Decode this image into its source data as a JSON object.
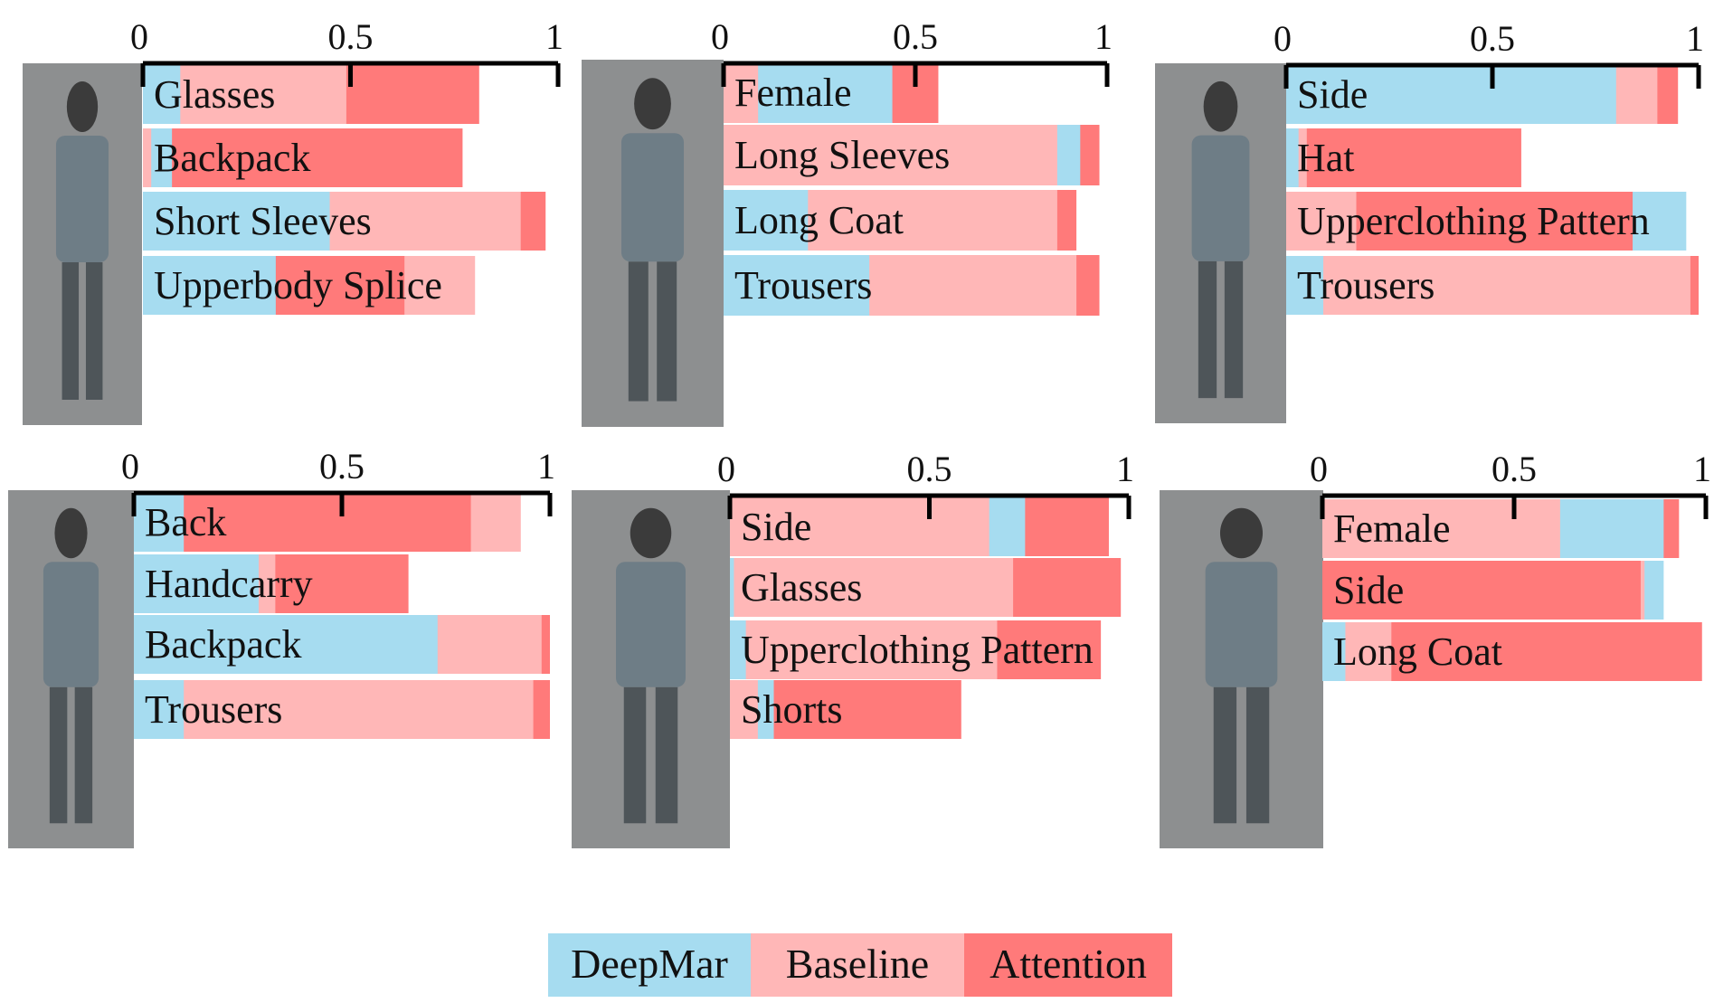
{
  "colors": {
    "DeepMar": "#a6dcf0",
    "Baseline": "#ffb7b7",
    "Attention": "#ff7a7a",
    "axis": "#000000",
    "photo": "#8d8f90"
  },
  "legend": [
    {
      "name": "DeepMar",
      "color": "#a6dcf0"
    },
    {
      "name": "Baseline",
      "color": "#ffb7b7"
    },
    {
      "name": "Attention",
      "color": "#ff7a7a"
    }
  ],
  "chart_data": [
    {
      "type": "bar",
      "orientation": "horizontal",
      "xlim": [
        0,
        1
      ],
      "ticks": [
        0,
        0.5,
        1
      ],
      "tick_labels": [
        "0",
        "0.5",
        "1"
      ],
      "categories": [
        "Glasses",
        "Backpack",
        "Short Sleeves",
        "Upperbody Splice"
      ],
      "series": [
        {
          "name": "DeepMar",
          "values": [
            0.09,
            0.07,
            0.45,
            0.32
          ]
        },
        {
          "name": "Baseline",
          "values": [
            0.49,
            0.02,
            0.91,
            0.8
          ]
        },
        {
          "name": "Attention",
          "values": [
            0.81,
            0.77,
            0.97,
            0.63
          ]
        }
      ]
    },
    {
      "type": "bar",
      "orientation": "horizontal",
      "xlim": [
        0,
        1
      ],
      "ticks": [
        0,
        0.5,
        1
      ],
      "tick_labels": [
        "0",
        "0.5",
        "1"
      ],
      "categories": [
        "Female",
        "Long Sleeves",
        "Long Coat",
        "Trousers"
      ],
      "series": [
        {
          "name": "DeepMar",
          "values": [
            0.44,
            0.93,
            0.22,
            0.38
          ]
        },
        {
          "name": "Baseline",
          "values": [
            0.09,
            0.87,
            0.87,
            0.92
          ]
        },
        {
          "name": "Attention",
          "values": [
            0.56,
            0.98,
            0.92,
            0.98
          ]
        }
      ]
    },
    {
      "type": "bar",
      "orientation": "horizontal",
      "xlim": [
        0,
        1
      ],
      "ticks": [
        0,
        0.5,
        1
      ],
      "tick_labels": [
        "0",
        "0.5",
        "1"
      ],
      "categories": [
        "Side",
        "Hat",
        "Upperclothing Pattern",
        "Trousers"
      ],
      "series": [
        {
          "name": "DeepMar",
          "values": [
            0.8,
            0.03,
            0.97,
            0.09
          ]
        },
        {
          "name": "Baseline",
          "values": [
            0.9,
            0.05,
            0.17,
            0.98
          ]
        },
        {
          "name": "Attention",
          "values": [
            0.95,
            0.57,
            0.84,
            1.0
          ]
        }
      ]
    },
    {
      "type": "bar",
      "orientation": "horizontal",
      "xlim": [
        0,
        1
      ],
      "ticks": [
        0,
        0.5,
        1
      ],
      "tick_labels": [
        "0",
        "0.5",
        "1"
      ],
      "categories": [
        "Back",
        "Handcarry",
        "Backpack",
        "Trousers"
      ],
      "series": [
        {
          "name": "DeepMar",
          "values": [
            0.12,
            0.3,
            0.73,
            0.12
          ]
        },
        {
          "name": "Baseline",
          "values": [
            0.93,
            0.34,
            0.98,
            0.96
          ]
        },
        {
          "name": "Attention",
          "values": [
            0.81,
            0.66,
            1.0,
            1.0
          ]
        }
      ]
    },
    {
      "type": "bar",
      "orientation": "horizontal",
      "xlim": [
        0,
        1
      ],
      "ticks": [
        0,
        0.5,
        1
      ],
      "tick_labels": [
        "0",
        "0.5",
        "1"
      ],
      "categories": [
        "Side",
        "Glasses",
        "Upperclothing Pattern",
        "Shorts"
      ],
      "series": [
        {
          "name": "DeepMar",
          "values": [
            0.74,
            0.01,
            0.04,
            0.11
          ]
        },
        {
          "name": "Baseline",
          "values": [
            0.65,
            0.71,
            0.67,
            0.07
          ]
        },
        {
          "name": "Attention",
          "values": [
            0.95,
            0.98,
            0.93,
            0.58
          ]
        }
      ]
    },
    {
      "type": "bar",
      "orientation": "horizontal",
      "xlim": [
        0,
        1
      ],
      "ticks": [
        0,
        0.5,
        1
      ],
      "tick_labels": [
        "0",
        "0.5",
        "1"
      ],
      "categories": [
        "Female",
        "Side",
        "Long Coat"
      ],
      "series": [
        {
          "name": "DeepMar",
          "values": [
            0.89,
            0.89,
            0.06
          ]
        },
        {
          "name": "Baseline",
          "values": [
            0.62,
            0.84,
            0.18
          ]
        },
        {
          "name": "Attention",
          "values": [
            0.93,
            0.83,
            0.99
          ]
        }
      ]
    }
  ]
}
